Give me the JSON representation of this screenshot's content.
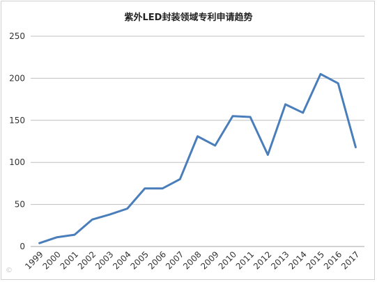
{
  "chart_data": {
    "type": "line",
    "title": "紫外LED封装领域专利申请趋势",
    "xlabel": "",
    "ylabel": "",
    "x": [
      "1999",
      "2000",
      "2001",
      "2002",
      "2003",
      "2004",
      "2005",
      "2006",
      "2007",
      "2008",
      "2009",
      "2010",
      "2011",
      "2012",
      "2013",
      "2014",
      "2015",
      "2016",
      "2017"
    ],
    "series": [
      {
        "values": [
          4,
          11,
          14,
          32,
          38,
          45,
          69,
          69,
          80,
          131,
          120,
          155,
          154,
          109,
          169,
          159,
          205,
          194,
          118
        ]
      }
    ],
    "ylim": [
      0,
      250
    ],
    "yticks": [
      0,
      50,
      100,
      150,
      200,
      250
    ],
    "grid": true,
    "line_color": "#4a7ebb"
  },
  "watermark": "©"
}
